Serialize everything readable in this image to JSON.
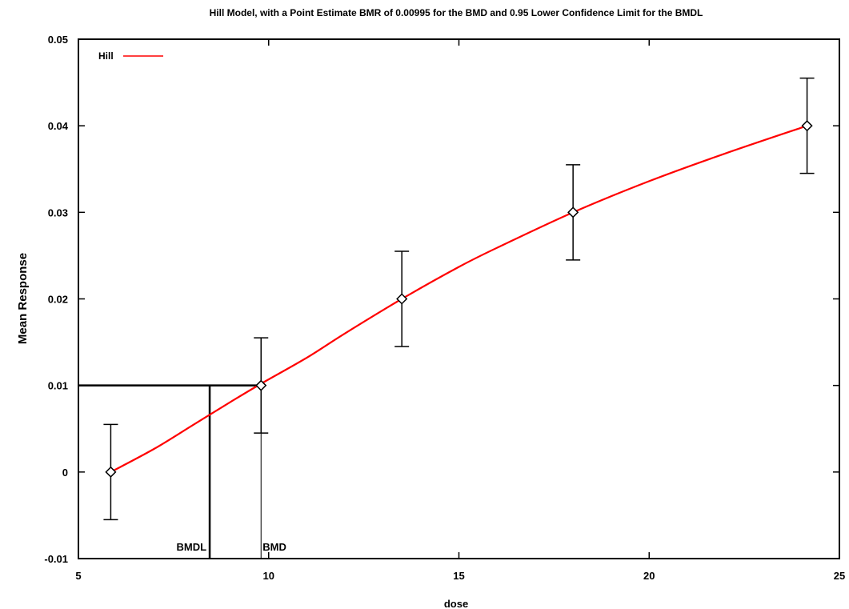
{
  "chart_data": {
    "type": "line",
    "title": "Hill Model, with a Point Estimate BMR of 0.00995 for the BMD and 0.95 Lower Confidence Limit for the BMDL",
    "xlabel": "dose",
    "ylabel": "Mean Response",
    "xlim": [
      5,
      25
    ],
    "ylim": [
      -0.01,
      0.05
    ],
    "x_ticks": [
      5,
      10,
      15,
      20,
      25
    ],
    "x_tick_labels": [
      "5",
      "10",
      "15",
      "20",
      "25"
    ],
    "y_ticks": [
      -0.01,
      0,
      0.01,
      0.02,
      0.03,
      0.04,
      0.05
    ],
    "y_tick_labels": [
      "-0.01",
      "0",
      "0.01",
      "0.02",
      "0.03",
      "0.04",
      "0.05"
    ],
    "legend": {
      "position": "top-left",
      "entries": [
        {
          "label": "Hill",
          "color": "#ff0000"
        }
      ]
    },
    "series": [
      {
        "name": "Hill",
        "color": "#ff0000",
        "x": [
          5.85,
          7.0,
          8.0,
          9.0,
          9.8,
          11.0,
          12.0,
          13.5,
          15.0,
          16.0,
          18.0,
          20.0,
          22.0,
          24.15
        ],
        "values": [
          0.0,
          0.0027,
          0.0054,
          0.0081,
          0.0102,
          0.0132,
          0.016,
          0.02,
          0.0237,
          0.0259,
          0.03,
          0.0336,
          0.0368,
          0.04
        ]
      }
    ],
    "observations": {
      "x": [
        5.85,
        9.8,
        13.5,
        18.0,
        24.15
      ],
      "mean": [
        0.0,
        0.01,
        0.02,
        0.03,
        0.04
      ],
      "lower": [
        -0.0055,
        0.0045,
        0.0145,
        0.0245,
        0.0345
      ],
      "upper": [
        0.0055,
        0.0155,
        0.0255,
        0.0355,
        0.0455
      ]
    },
    "bmr_level": 0.01,
    "bmd": 9.8,
    "bmdl": 8.45,
    "annotations": [
      {
        "label": "BMDL",
        "x": 8.45
      },
      {
        "label": "BMD",
        "x": 9.8
      }
    ],
    "grid": false
  }
}
